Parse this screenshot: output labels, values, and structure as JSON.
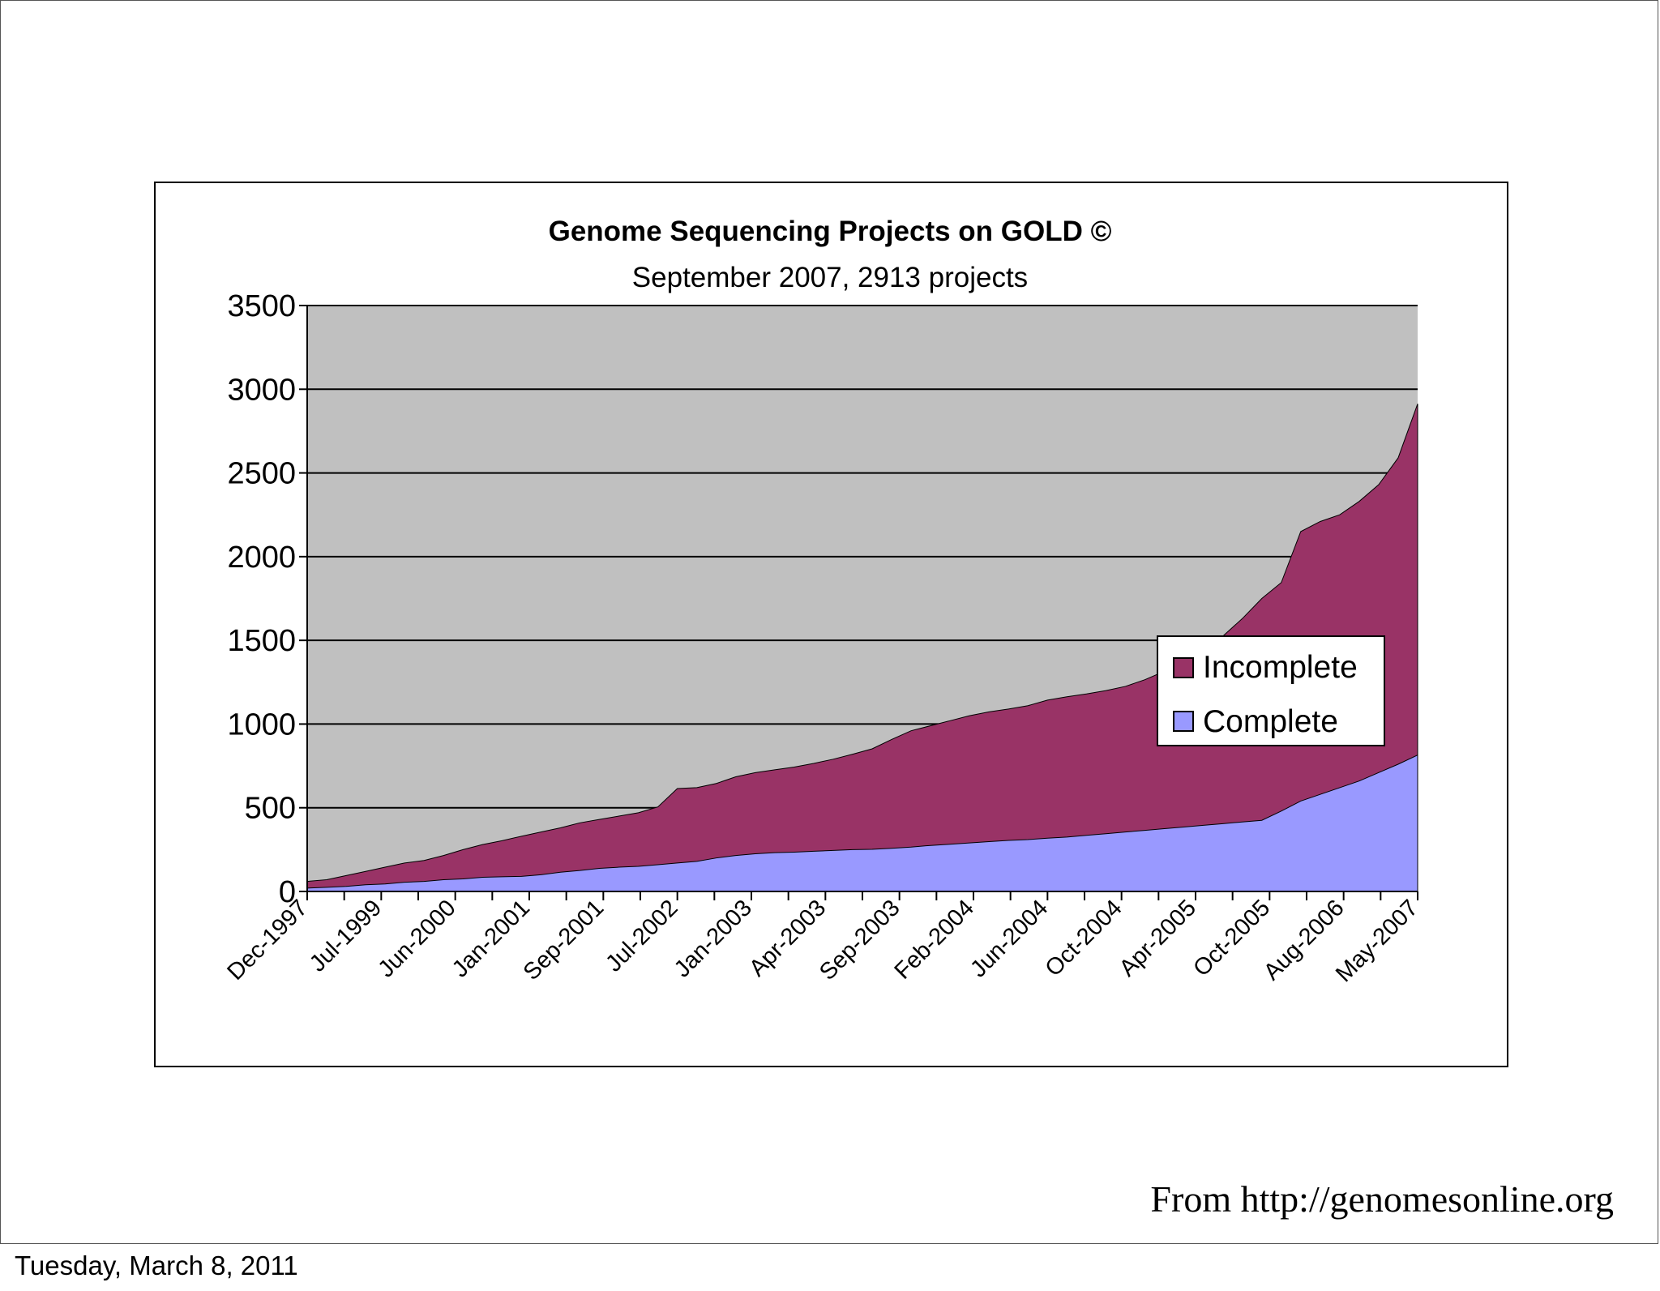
{
  "source_note": "From http://genomesonline.org",
  "footer_date": "Tuesday, March 8, 2011",
  "colors": {
    "plot_background": "#c0c0c0",
    "incomplete": "#993366",
    "complete": "#9999ff",
    "gridline": "#000000"
  },
  "chart_data": {
    "type": "area",
    "stacked": true,
    "title": "Genome Sequencing Projects on GOLD ©",
    "subtitle": "September 2007, 2913 projects",
    "xlabel": "",
    "ylabel": "",
    "ylim": [
      0,
      3500
    ],
    "yticks": [
      0,
      500,
      1000,
      1500,
      2000,
      2500,
      3000,
      3500
    ],
    "grid": true,
    "legend_position": "right",
    "x_tick_labels": [
      "Dec-1997",
      "Jul-1999",
      "Jun-2000",
      "Jan-2001",
      "Sep-2001",
      "Jul-2002",
      "Jan-2003",
      "Apr-2003",
      "Sep-2003",
      "Feb-2004",
      "Jun-2004",
      "Oct-2004",
      "Apr-2005",
      "Oct-2005",
      "Aug-2006",
      "May-2007"
    ],
    "series": [
      {
        "name": "Complete",
        "color": "#9999ff",
        "values": [
          20,
          25,
          30,
          40,
          45,
          55,
          60,
          70,
          75,
          85,
          88,
          90,
          100,
          115,
          125,
          138,
          145,
          150,
          160,
          170,
          180,
          200,
          215,
          225,
          232,
          235,
          240,
          245,
          250,
          252,
          258,
          265,
          275,
          282,
          290,
          298,
          305,
          310,
          318,
          325,
          335,
          345,
          355,
          365,
          375,
          385,
          395,
          405,
          415,
          425,
          480,
          540,
          580,
          620,
          660,
          710,
          760,
          815
        ]
      },
      {
        "name": "Incomplete",
        "color": "#993366",
        "values": [
          40,
          45,
          65,
          80,
          100,
          115,
          125,
          145,
          175,
          195,
          215,
          240,
          255,
          265,
          285,
          292,
          305,
          320,
          345,
          445,
          440,
          445,
          470,
          485,
          495,
          508,
          525,
          545,
          570,
          600,
          650,
          695,
          715,
          738,
          760,
          775,
          785,
          800,
          825,
          838,
          845,
          855,
          870,
          900,
          940,
          995,
          1055,
          1120,
          1215,
          1325,
          1365,
          1610,
          1630,
          1630,
          1670,
          1720,
          1830,
          2098
        ]
      }
    ]
  }
}
